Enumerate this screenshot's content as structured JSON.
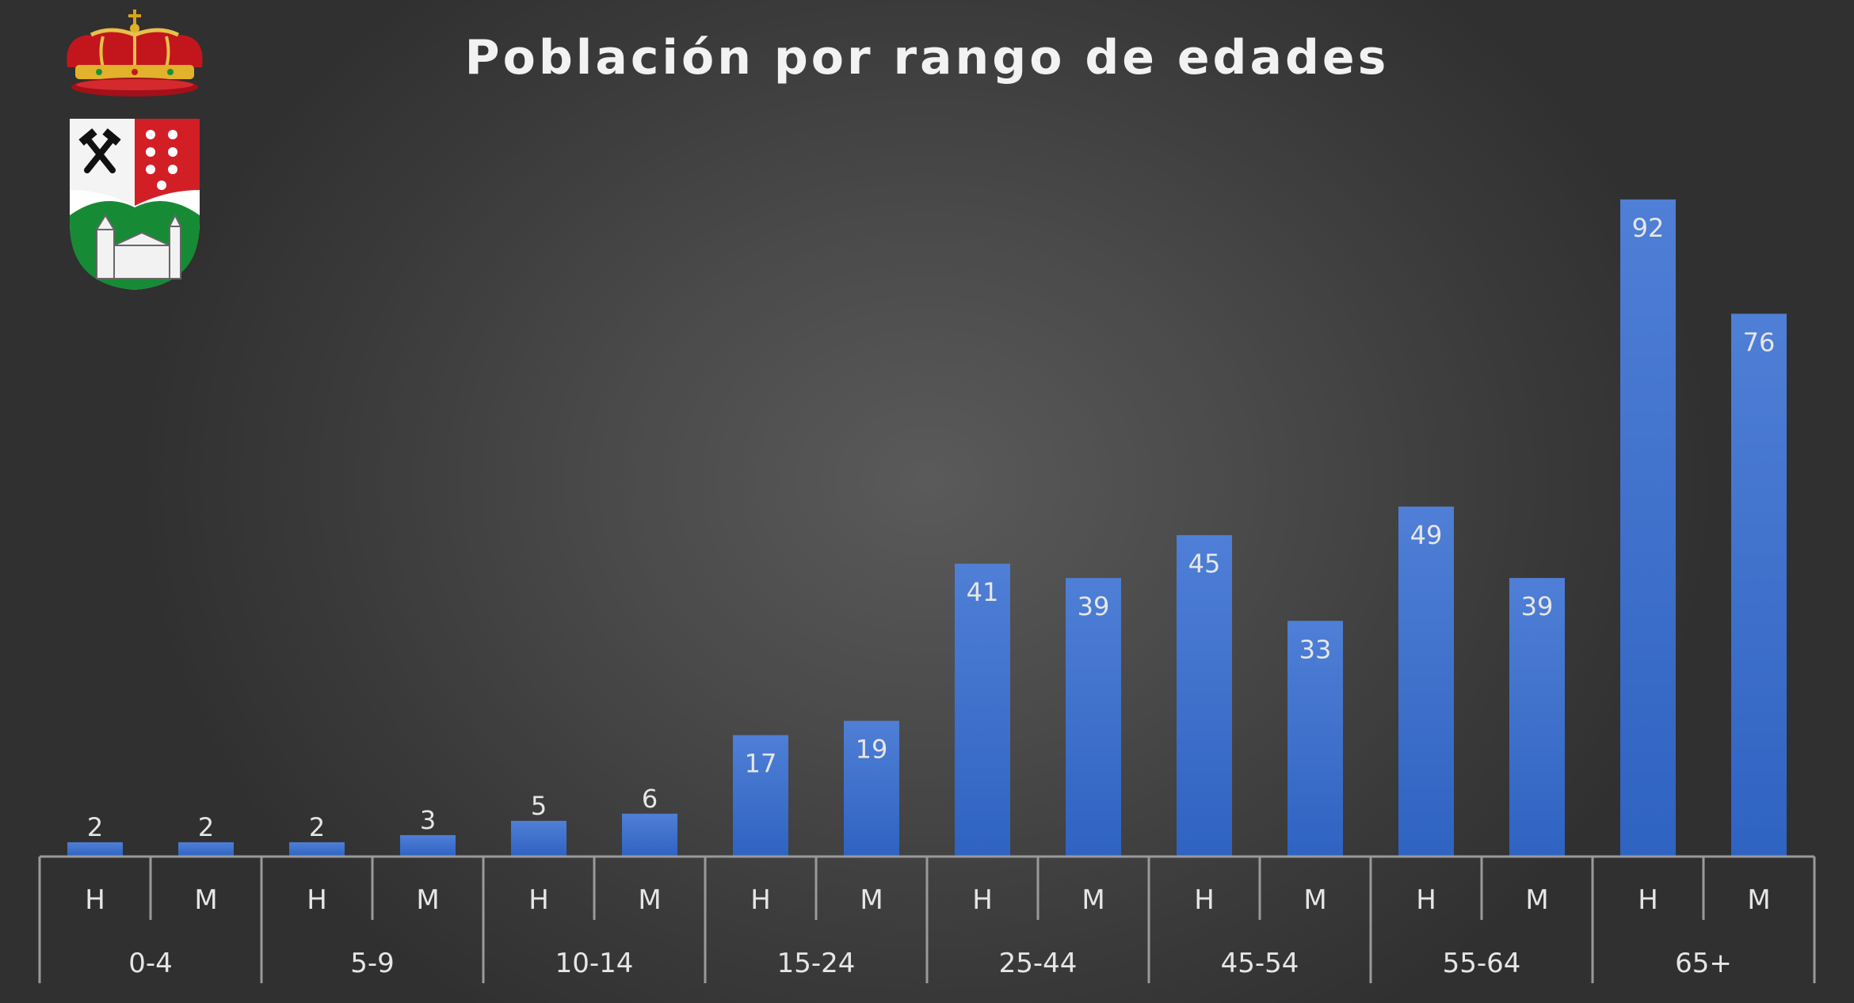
{
  "chart_data": {
    "type": "bar",
    "title": "Población por rango de edades",
    "groups": [
      "0-4",
      "5-9",
      "10-14",
      "15-24",
      "25-44",
      "45-54",
      "55-64",
      "65+"
    ],
    "subcategories": [
      "H",
      "M"
    ],
    "values": [
      [
        2,
        2
      ],
      [
        2,
        3
      ],
      [
        5,
        6
      ],
      [
        17,
        19
      ],
      [
        41,
        39
      ],
      [
        45,
        33
      ],
      [
        49,
        39
      ],
      [
        92,
        76
      ]
    ],
    "ylim": [
      0,
      100
    ],
    "grid": false,
    "legend": "none",
    "data_labels": true,
    "colors": {
      "bar_top": "#4f7fd6",
      "bar_bottom": "#2f63c2",
      "label": "#e6e6e6",
      "axis": "#9a9a9a"
    }
  }
}
